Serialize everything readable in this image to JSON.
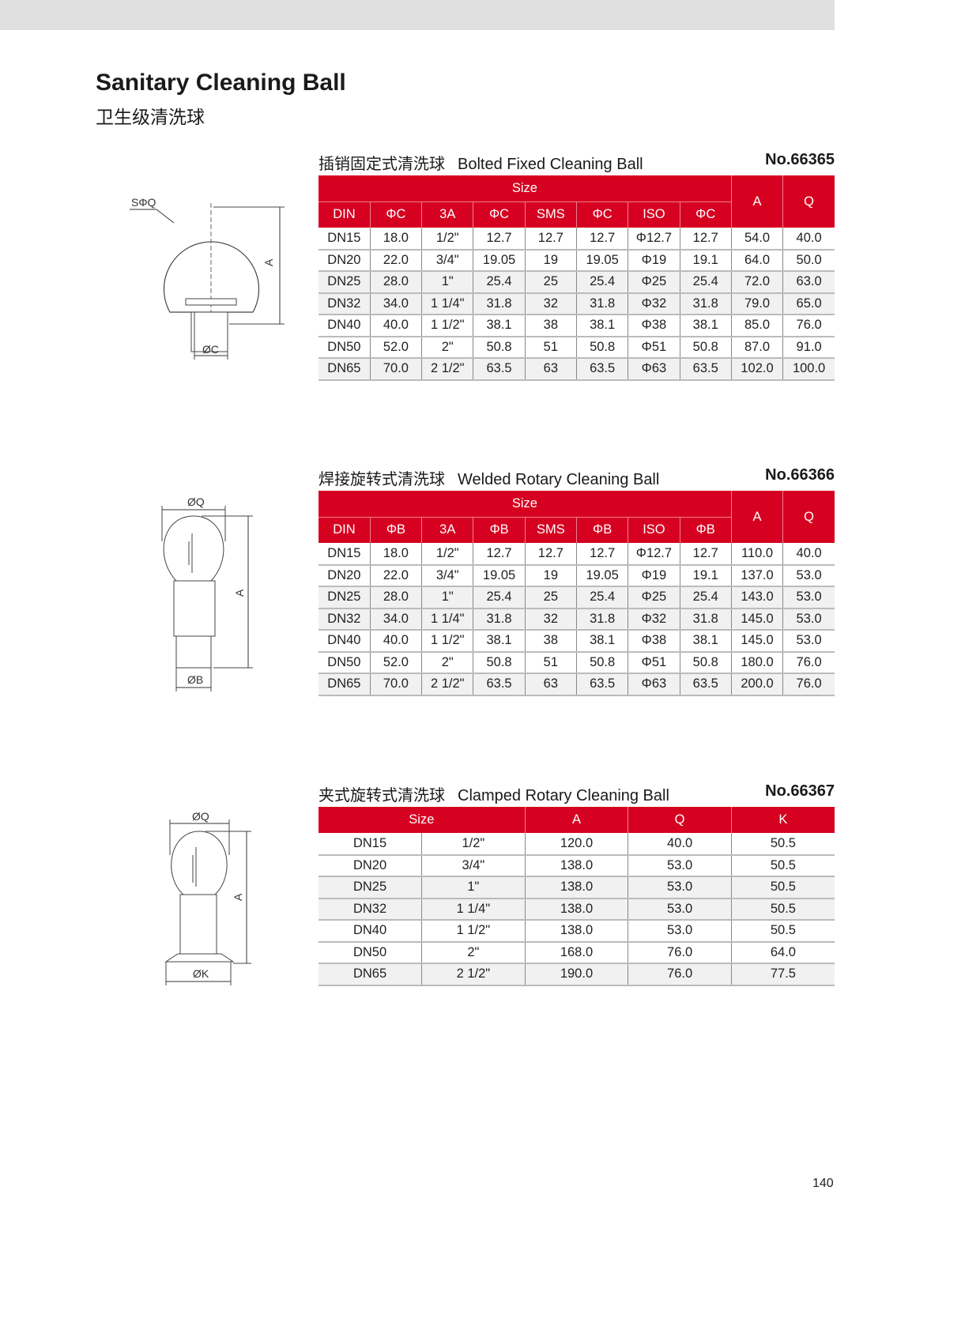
{
  "header": {
    "title": "Sanitary Cleaning Ball",
    "subtitle": "卫生级清洗球"
  },
  "sections": [
    {
      "title_cn": "插销固定式清洗球",
      "title_en": "Bolted Fixed Cleaning Ball",
      "number": "No.66365",
      "drawing_labels": {
        "sphere": "SΦQ",
        "height": "A",
        "diameter": "ØC"
      },
      "group_header": "Size",
      "tail_headers": [
        "A",
        "Q"
      ],
      "columns": [
        "DIN",
        "ΦC",
        "3A",
        "ΦC",
        "SMS",
        "ΦC",
        "ISO",
        "ΦC"
      ],
      "rows": [
        [
          "DN15",
          "18.0",
          "1/2\"",
          "12.7",
          "12.7",
          "12.7",
          "Φ12.7",
          "12.7",
          "54.0",
          "40.0"
        ],
        [
          "DN20",
          "22.0",
          "3/4\"",
          "19.05",
          "19",
          "19.05",
          "Φ19",
          "19.1",
          "64.0",
          "50.0"
        ],
        [
          "DN25",
          "28.0",
          "1\"",
          "25.4",
          "25",
          "25.4",
          "Φ25",
          "25.4",
          "72.0",
          "63.0"
        ],
        [
          "DN32",
          "34.0",
          "1 1/4\"",
          "31.8",
          "32",
          "31.8",
          "Φ32",
          "31.8",
          "79.0",
          "65.0"
        ],
        [
          "DN40",
          "40.0",
          "1 1/2\"",
          "38.1",
          "38",
          "38.1",
          "Φ38",
          "38.1",
          "85.0",
          "76.0"
        ],
        [
          "DN50",
          "52.0",
          "2\"",
          "50.8",
          "51",
          "50.8",
          "Φ51",
          "50.8",
          "87.0",
          "91.0"
        ],
        [
          "DN65",
          "70.0",
          "2 1/2\"",
          "63.5",
          "63",
          "63.5",
          "Φ63",
          "63.5",
          "102.0",
          "100.0"
        ]
      ]
    },
    {
      "title_cn": "焊接旋转式清洗球",
      "title_en": "Welded Rotary Cleaning Ball",
      "number": "No.66366",
      "drawing_labels": {
        "sphere": "ØQ",
        "height": "A",
        "diameter": "ØB"
      },
      "group_header": "Size",
      "tail_headers": [
        "A",
        "Q"
      ],
      "columns": [
        "DIN",
        "ΦB",
        "3A",
        "ΦB",
        "SMS",
        "ΦB",
        "ISO",
        "ΦB"
      ],
      "rows": [
        [
          "DN15",
          "18.0",
          "1/2\"",
          "12.7",
          "12.7",
          "12.7",
          "Φ12.7",
          "12.7",
          "110.0",
          "40.0"
        ],
        [
          "DN20",
          "22.0",
          "3/4\"",
          "19.05",
          "19",
          "19.05",
          "Φ19",
          "19.1",
          "137.0",
          "53.0"
        ],
        [
          "DN25",
          "28.0",
          "1\"",
          "25.4",
          "25",
          "25.4",
          "Φ25",
          "25.4",
          "143.0",
          "53.0"
        ],
        [
          "DN32",
          "34.0",
          "1 1/4\"",
          "31.8",
          "32",
          "31.8",
          "Φ32",
          "31.8",
          "145.0",
          "53.0"
        ],
        [
          "DN40",
          "40.0",
          "1 1/2\"",
          "38.1",
          "38",
          "38.1",
          "Φ38",
          "38.1",
          "145.0",
          "53.0"
        ],
        [
          "DN50",
          "52.0",
          "2\"",
          "50.8",
          "51",
          "50.8",
          "Φ51",
          "50.8",
          "180.0",
          "76.0"
        ],
        [
          "DN65",
          "70.0",
          "2 1/2\"",
          "63.5",
          "63",
          "63.5",
          "Φ63",
          "63.5",
          "200.0",
          "76.0"
        ]
      ]
    },
    {
      "title_cn": "夹式旋转式清洗球",
      "title_en": "Clamped Rotary  Cleaning Ball",
      "number": "No.66367",
      "drawing_labels": {
        "sphere": "ØQ",
        "height": "A",
        "diameter": "ØK"
      },
      "headers": [
        "Size",
        "A",
        "Q",
        "K"
      ],
      "rows": [
        [
          "DN15",
          "1/2\"",
          "120.0",
          "40.0",
          "50.5"
        ],
        [
          "DN20",
          "3/4\"",
          "138.0",
          "53.0",
          "50.5"
        ],
        [
          "DN25",
          "1\"",
          "138.0",
          "53.0",
          "50.5"
        ],
        [
          "DN32",
          "1 1/4\"",
          "138.0",
          "53.0",
          "50.5"
        ],
        [
          "DN40",
          "1 1/2\"",
          "138.0",
          "53.0",
          "50.5"
        ],
        [
          "DN50",
          "2\"",
          "168.0",
          "76.0",
          "64.0"
        ],
        [
          "DN65",
          "2 1/2\"",
          "190.0",
          "76.0",
          "77.5"
        ]
      ]
    }
  ],
  "page_number": "140",
  "colors": {
    "header_red": "#d60020",
    "stripe": "#f1f1f1",
    "top_bar": "#e0e0e0"
  }
}
